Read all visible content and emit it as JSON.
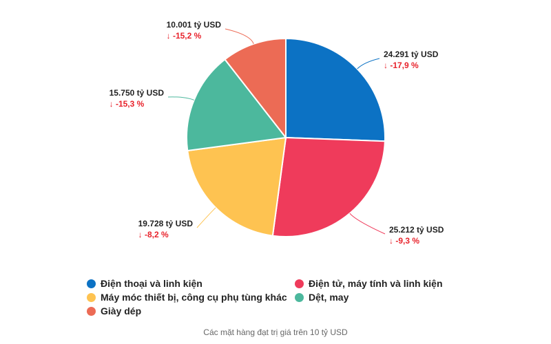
{
  "chart_data": {
    "type": "pie",
    "title": "",
    "caption": "Các mặt hàng đạt trị giá trên 10 tỷ USD",
    "legend_position": "bottom",
    "slices": [
      {
        "name": "Điện thoại và linh kiện",
        "value": 24.291,
        "value_label": "24.291 tỷ USD",
        "change_label": "↓ -17,9 %",
        "color": "#0c72c4"
      },
      {
        "name": "Điện tử, máy tính và linh kiện",
        "value": 25.212,
        "value_label": "25.212 tỷ USD",
        "change_label": "↓ -9,3 %",
        "color": "#ef3b5b"
      },
      {
        "name": "Máy móc thiết bị, công cụ phụ tùng khác",
        "value": 19.728,
        "value_label": "19.728 tỷ USD",
        "change_label": "↓ -8,2 %",
        "color": "#fec351"
      },
      {
        "name": "Dệt, may",
        "value": 15.75,
        "value_label": "15.750 tỷ USD",
        "change_label": "↓ -15,3 %",
        "color": "#4cb89d"
      },
      {
        "name": "Giày dép",
        "value": 10.001,
        "value_label": "10.001 tỷ USD",
        "change_label": "↓ -15,2 %",
        "color": "#ec6b55"
      }
    ]
  }
}
